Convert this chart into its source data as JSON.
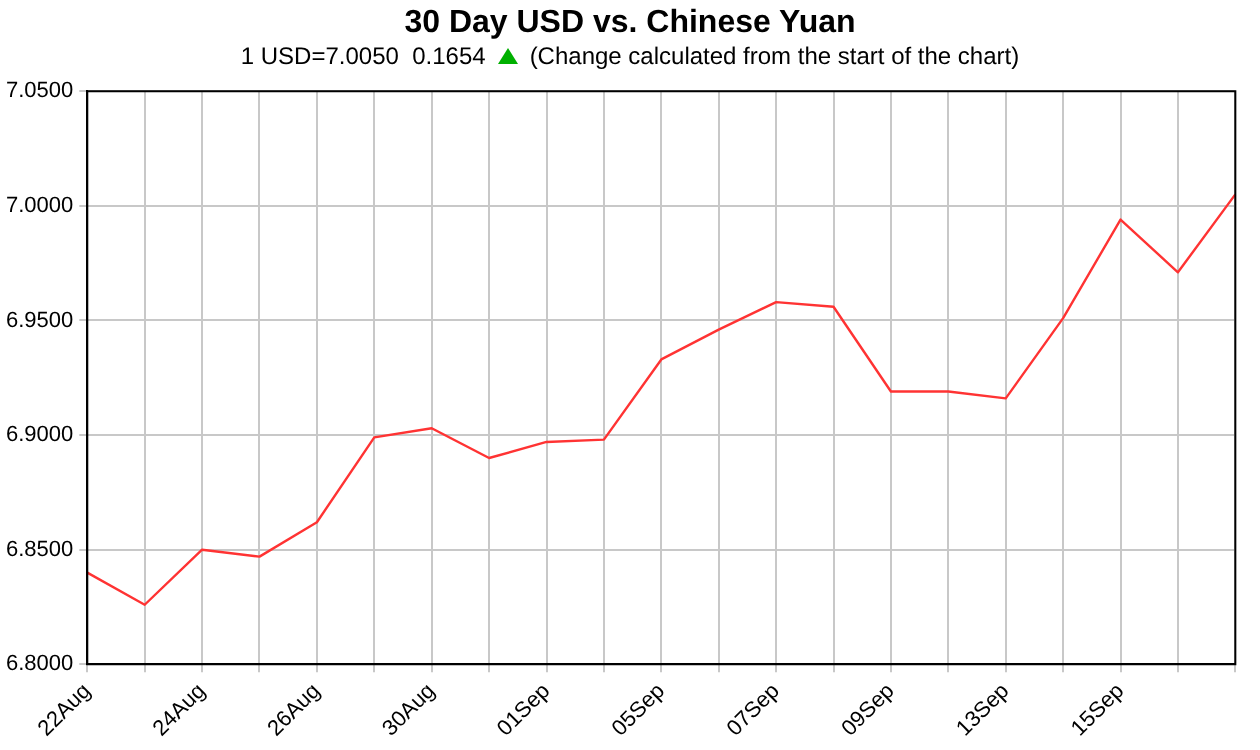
{
  "chart_data": {
    "type": "line",
    "title": "30 Day USD vs. Chinese Yuan",
    "subtitle": "1 USD=7.0050  0.1654",
    "annotations": [
      "(Change calculated from the start of the chart)"
    ],
    "categories": [
      "22Aug",
      null,
      "24Aug",
      null,
      "26Aug",
      null,
      "30Aug",
      null,
      "01Sep",
      null,
      "05Sep",
      null,
      "07Sep",
      null,
      "09Sep",
      null,
      "13Sep",
      null,
      "15Sep",
      null,
      null
    ],
    "series": [
      {
        "color": "#ff3333",
        "values": [
          6.84,
          6.826,
          6.85,
          6.847,
          6.862,
          6.899,
          6.903,
          6.89,
          6.897,
          6.898,
          6.933,
          6.946,
          6.958,
          6.956,
          6.919,
          6.919,
          6.916,
          6.951,
          6.994,
          6.971,
          7.005
        ]
      }
    ],
    "ylim": [
      6.8,
      7.05
    ],
    "yticks": [
      {
        "value": 6.8,
        "label": "6.8000"
      },
      {
        "value": 6.85,
        "label": "6.8500"
      },
      {
        "value": 6.9,
        "label": "6.9000"
      },
      {
        "value": 6.95,
        "label": "6.9500"
      },
      {
        "value": 7.0,
        "label": "7.0000"
      },
      {
        "value": 7.05,
        "label": "7.0500"
      }
    ],
    "grid": true,
    "legend": false,
    "marker": "none",
    "line_style": "solid"
  }
}
